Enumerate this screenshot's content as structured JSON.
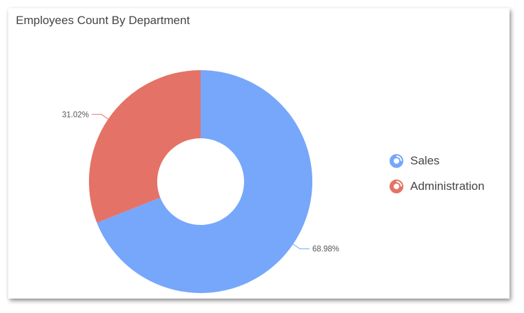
{
  "chart_data": {
    "type": "pie",
    "title": "Employees Count By Department",
    "donut": true,
    "series": [
      {
        "name": "Sales",
        "percent": 68.98,
        "label": "68.98%",
        "color": "#76a7fa"
      },
      {
        "name": "Administration",
        "percent": 31.02,
        "label": "31.02%",
        "color": "#e57266"
      }
    ],
    "legend_position": "right"
  }
}
